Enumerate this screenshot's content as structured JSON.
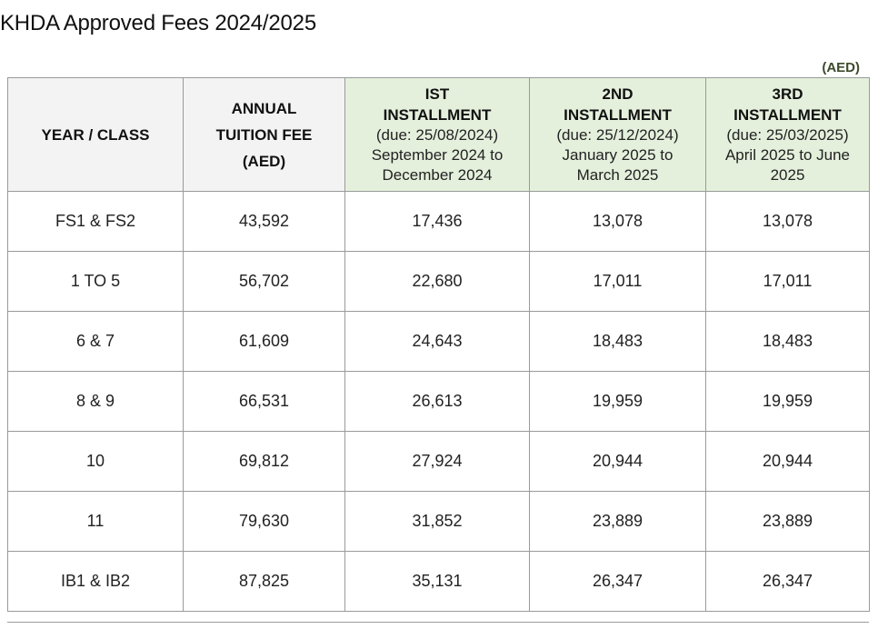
{
  "title": "KHDA Approved Fees 2024/2025",
  "currency_note": "(AED)",
  "colors": {
    "header_grey": "#f3f3f3",
    "header_green": "#e4f0dc",
    "border": "#9a9a9a"
  },
  "table": {
    "headers": {
      "year_class": "YEAR / CLASS",
      "annual": {
        "line1": "ANNUAL",
        "line2": "TUITION FEE",
        "line3": "(AED)"
      },
      "inst1": {
        "line1": "IST",
        "line2": "INSTALLMENT",
        "due": "(due: 25/08/2024)",
        "period1": "September 2024 to",
        "period2": "December 2024"
      },
      "inst2": {
        "line1": "2ND",
        "line2": "INSTALLMENT",
        "due": "(due: 25/12/2024)",
        "period1": "January 2025 to",
        "period2": "March 2025"
      },
      "inst3": {
        "line1": "3RD",
        "line2": "INSTALLMENT",
        "due": "(due: 25/03/2025)",
        "period1": "April 2025 to June",
        "period2": "2025"
      }
    },
    "rows": [
      {
        "class": "FS1 & FS2",
        "annual": "43,592",
        "inst1": "17,436",
        "inst2": "13,078",
        "inst3": "13,078"
      },
      {
        "class": "1 TO 5",
        "annual": "56,702",
        "inst1": "22,680",
        "inst2": "17,011",
        "inst3": "17,011"
      },
      {
        "class": "6 & 7",
        "annual": "61,609",
        "inst1": "24,643",
        "inst2": "18,483",
        "inst3": "18,483"
      },
      {
        "class": "8 & 9",
        "annual": "66,531",
        "inst1": "26,613",
        "inst2": "19,959",
        "inst3": "19,959"
      },
      {
        "class": "10",
        "annual": "69,812",
        "inst1": "27,924",
        "inst2": "20,944",
        "inst3": "20,944"
      },
      {
        "class": "11",
        "annual": "79,630",
        "inst1": "31,852",
        "inst2": "23,889",
        "inst3": "23,889"
      },
      {
        "class": "IB1 & IB2",
        "annual": "87,825",
        "inst1": "35,131",
        "inst2": "26,347",
        "inst3": "26,347"
      }
    ]
  }
}
